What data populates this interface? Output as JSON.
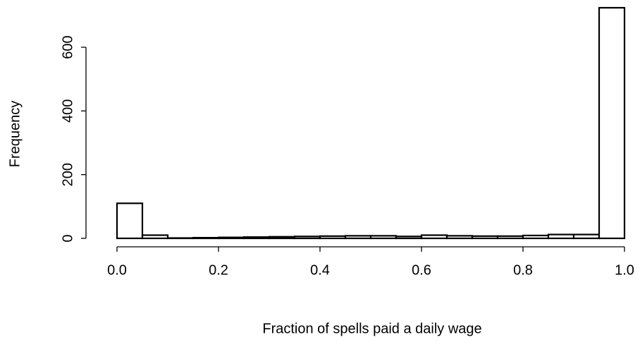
{
  "chart_data": {
    "type": "histogram",
    "xlabel": "Fraction of spells paid a daily wage",
    "ylabel": "Frequency",
    "bins": [
      0,
      0.05,
      0.1,
      0.15,
      0.2,
      0.25,
      0.3,
      0.35,
      0.4,
      0.45,
      0.5,
      0.55,
      0.6,
      0.65,
      0.7,
      0.75,
      0.8,
      0.85,
      0.9,
      0.95,
      1.0
    ],
    "values": [
      110,
      10,
      1,
      2,
      3,
      4,
      5,
      6,
      7,
      8,
      8,
      6,
      10,
      8,
      7,
      7,
      9,
      12,
      12,
      724
    ],
    "color": "#ffffff",
    "xlim": [
      0,
      1
    ],
    "xticks": [
      {
        "value": 0,
        "label": "0.0"
      },
      {
        "value": 0.2,
        "label": "0.2"
      },
      {
        "value": 0.4,
        "label": "0.4"
      },
      {
        "value": 0.6,
        "label": "0.6"
      },
      {
        "value": 0.8,
        "label": "0.8"
      },
      {
        "value": 1,
        "label": "1.0"
      }
    ],
    "ylim": [
      0,
      724
    ],
    "yticks": [
      0,
      200,
      400,
      600
    ],
    "grid": false
  }
}
